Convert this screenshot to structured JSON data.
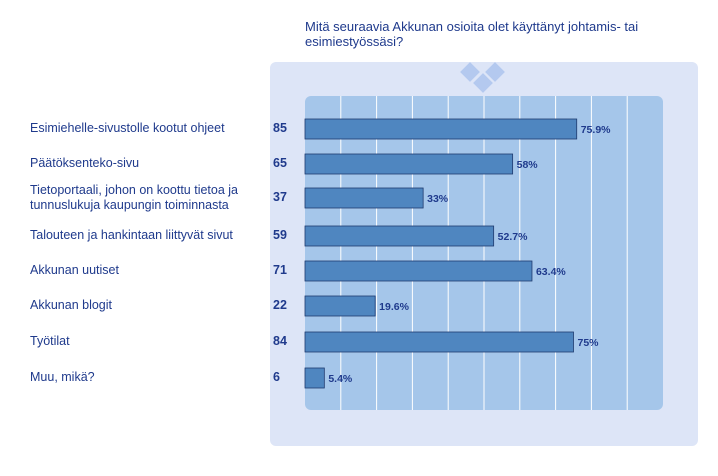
{
  "title": "Mitä seuraavia Akkunan osioita olet käyttänyt johtamis- tai esimiestyössäsi?",
  "chart_data": {
    "type": "bar",
    "orientation": "horizontal",
    "title": "Mitä seuraavia Akkunan osioita olet käyttänyt johtamis- tai esimiestyössäsi?",
    "xlim": [
      0,
      100
    ],
    "categories": [
      "Esimiehelle-sivustolle kootut ohjeet",
      "Päätöksenteko-sivu",
      "Tietoportaali, johon on koottu tietoa ja tunnuslukuja kaupungin toiminnasta",
      "Talouteen ja hankintaan liittyvät sivut",
      "Akkunan uutiset",
      "Akkunan blogit",
      "Työtilat",
      "Muu, mikä?"
    ],
    "counts": [
      "85",
      "65",
      "37",
      "59",
      "71",
      "22",
      "84",
      "6"
    ],
    "values": [
      75.9,
      58,
      33,
      52.7,
      63.4,
      19.6,
      75,
      5.4
    ],
    "value_labels": [
      "75.9%",
      "58%",
      "33%",
      "52.7%",
      "63.4%",
      "19.6%",
      "75%",
      "5.4%"
    ],
    "colors": {
      "bar": "#4f86c0",
      "bar_border": "#1f3a6e",
      "plot_bg": "#a5c6ea",
      "grid": "#ffffff",
      "frame_bg": "#dde5f7",
      "text": "#1f3a8c"
    }
  }
}
